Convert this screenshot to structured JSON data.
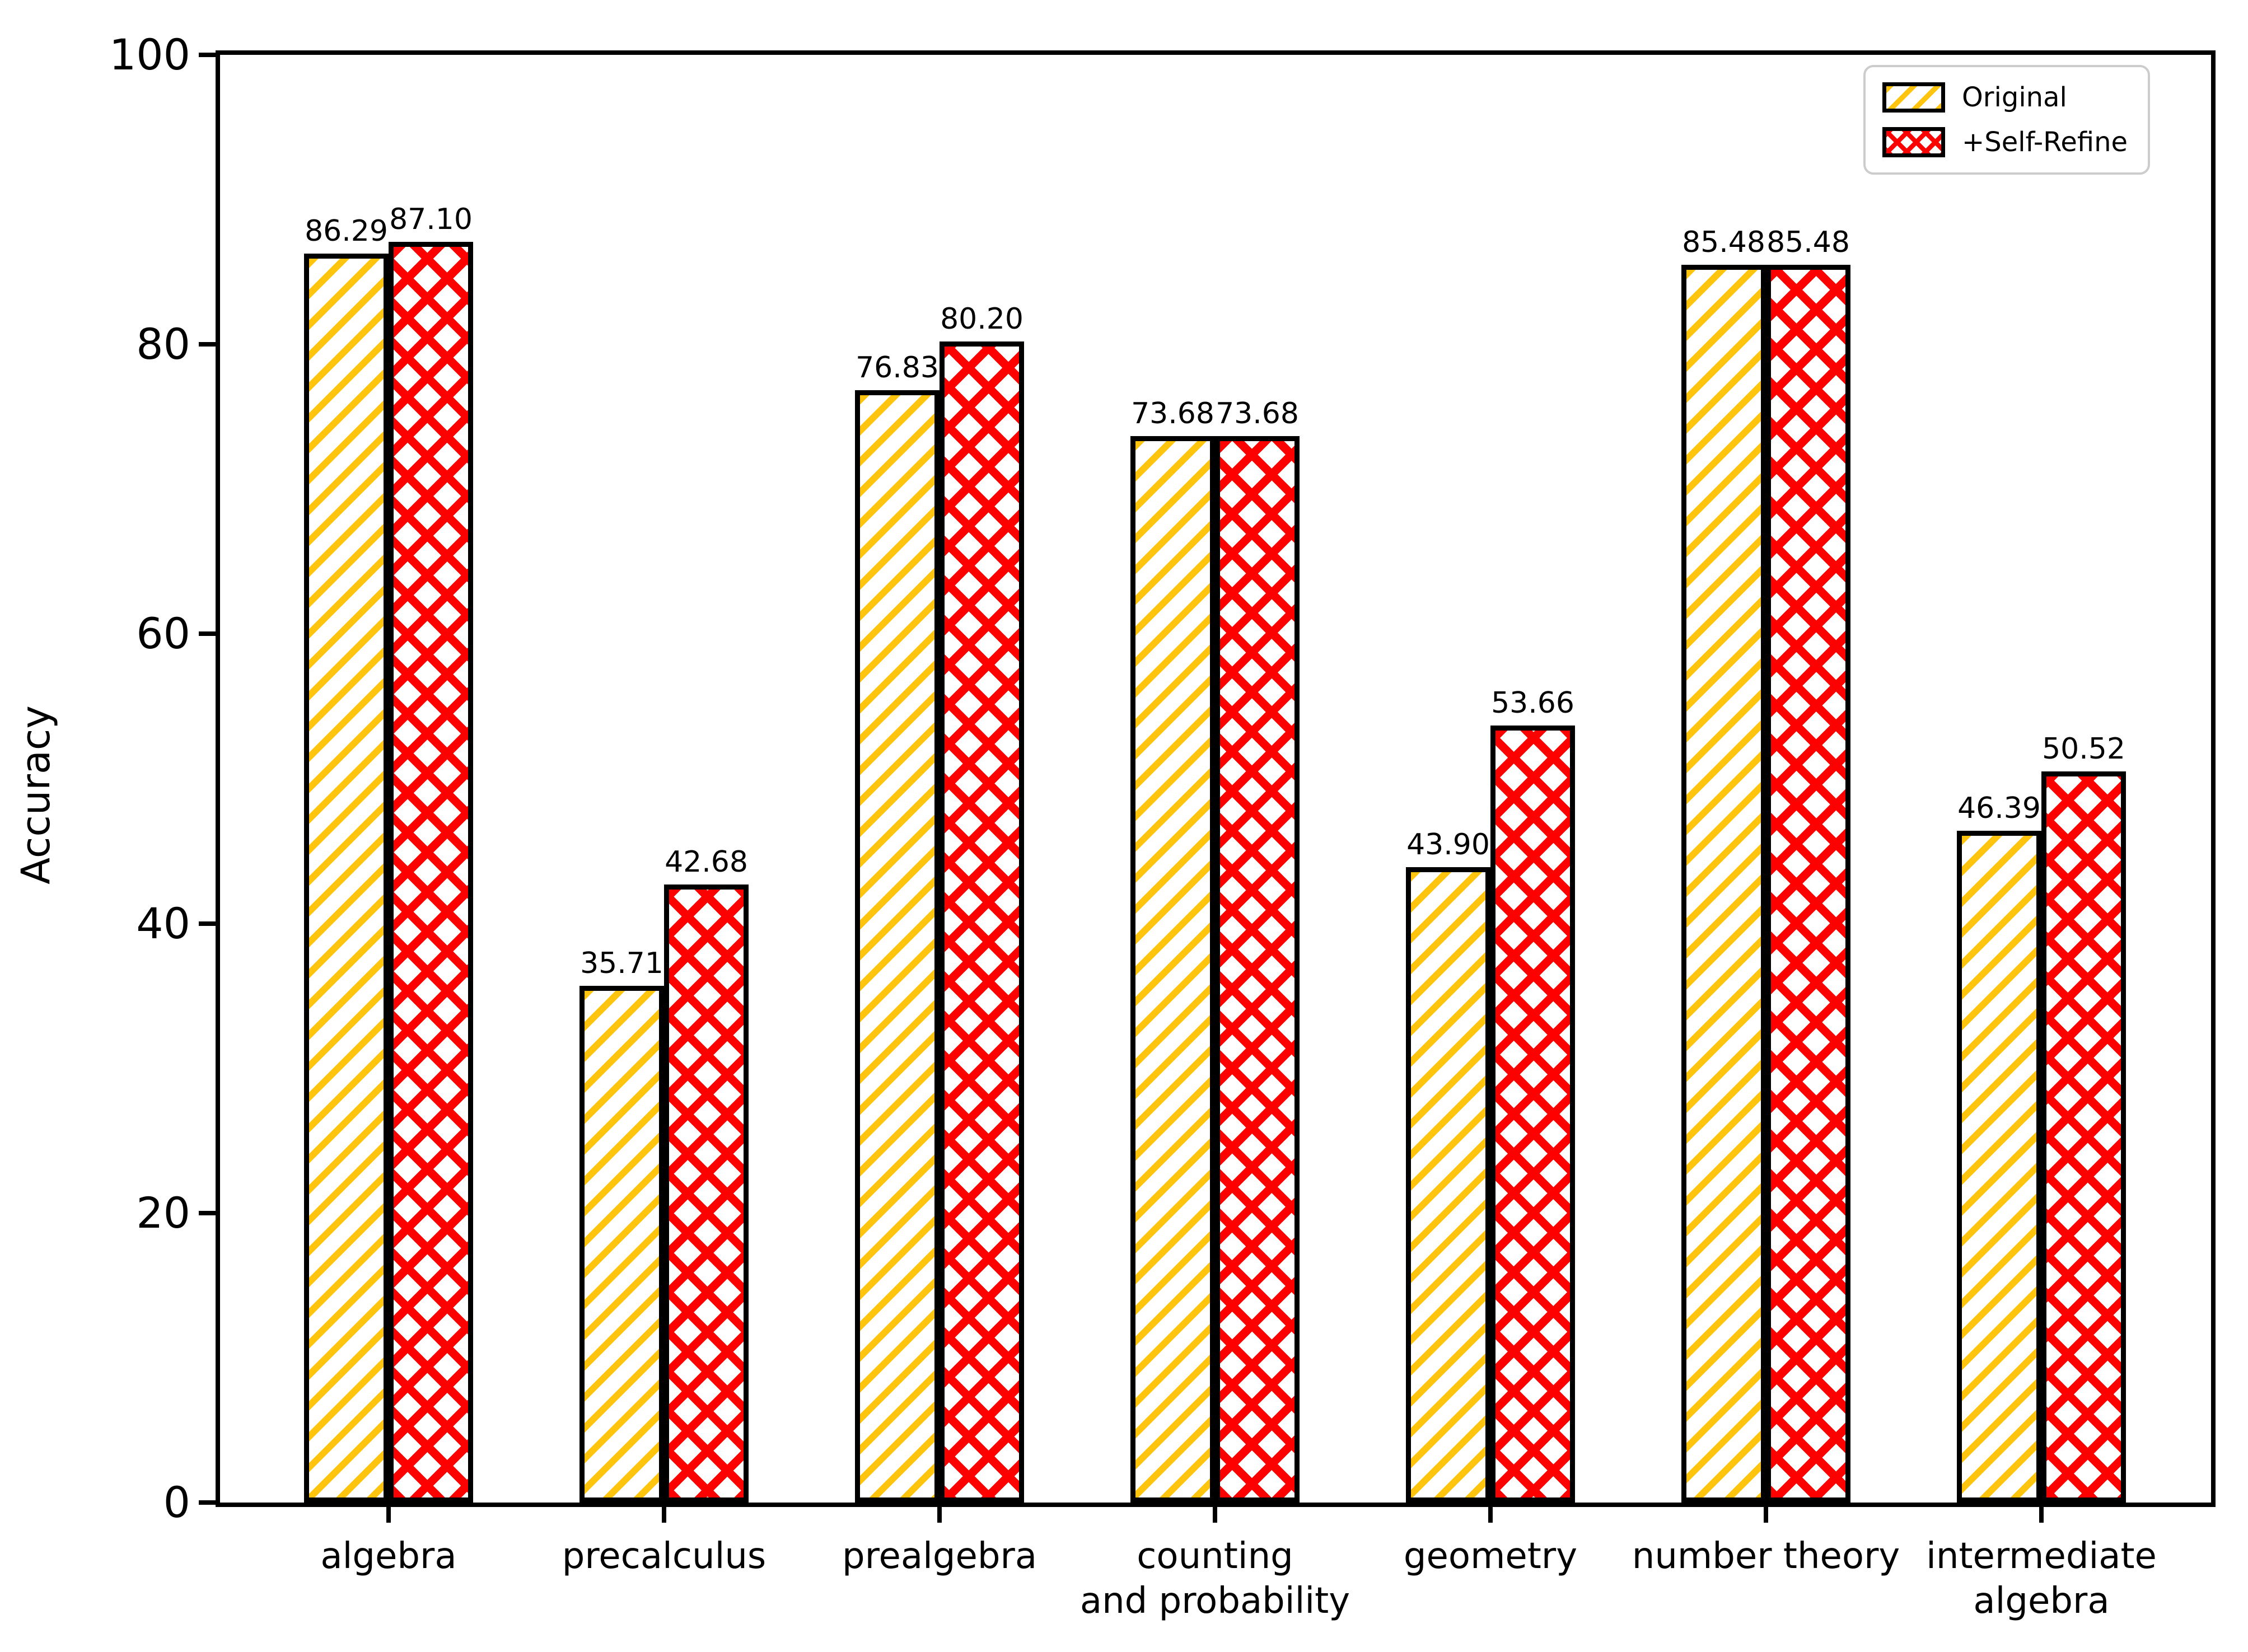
{
  "figure": {
    "background_color": "#FFFFFF",
    "axis_color": "#000000",
    "text_color": "#000000"
  },
  "chart_data": {
    "type": "bar",
    "title": "",
    "xlabel": "",
    "ylabel": "Accuracy",
    "ylim": [
      0,
      100
    ],
    "yticks": [
      0,
      20,
      40,
      60,
      80,
      100
    ],
    "grid": false,
    "legend_position": "upper right",
    "categories": [
      "algebra",
      "precalculus",
      "prealgebra",
      "counting\nand probability",
      "geometry",
      "number theory",
      "intermediate\nalgebra"
    ],
    "series": [
      {
        "name": "Original",
        "color": "#FFC40D",
        "edge_color": "#000000",
        "hatch": "/",
        "values": [
          86.29,
          35.71,
          76.83,
          73.68,
          43.9,
          85.48,
          46.39
        ]
      },
      {
        "name": "+Self-Refine",
        "color": "#FF0000",
        "edge_color": "#000000",
        "hatch": "xx",
        "values": [
          87.1,
          42.68,
          80.2,
          73.68,
          53.66,
          85.48,
          50.52
        ]
      }
    ],
    "value_label_format": "two-decimal numbers above each bar"
  }
}
